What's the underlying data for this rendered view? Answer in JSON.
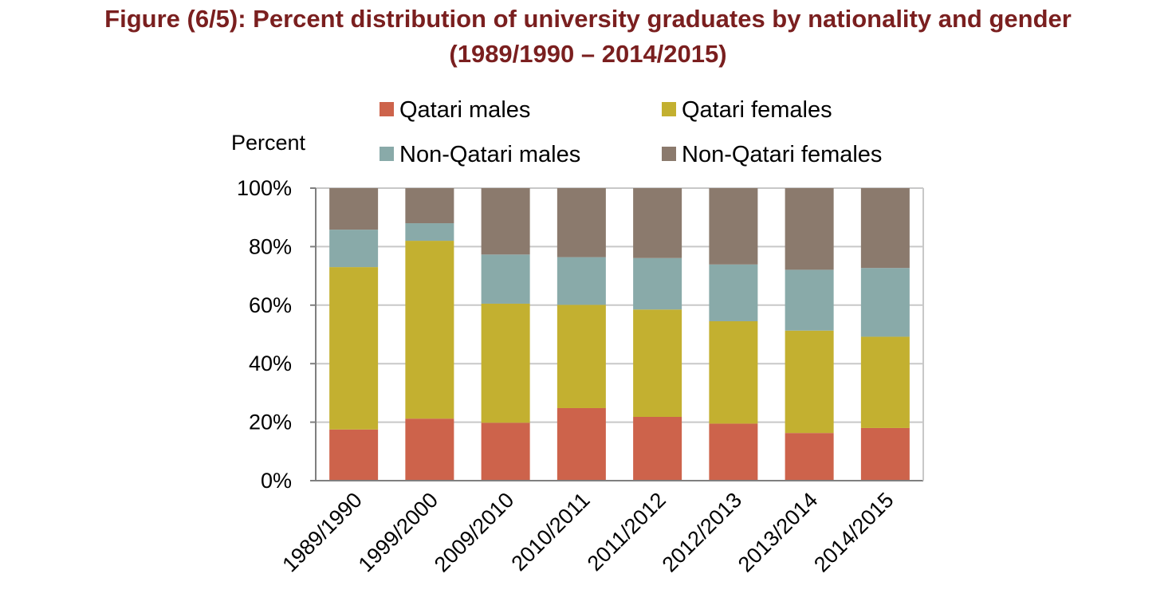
{
  "figure": {
    "title_line1": "Figure (6/5): Percent distribution of university graduates by nationality and gender",
    "title_line2": "(1989/1990 – 2014/2015)",
    "title_color": "#7a1f1f"
  },
  "chart_data": {
    "type": "bar",
    "stacked": true,
    "percent": true,
    "ylabel": "Percent",
    "xlabel": "",
    "ylim": [
      0,
      100
    ],
    "yticks": [
      "0%",
      "20%",
      "40%",
      "60%",
      "80%",
      "100%"
    ],
    "grid": true,
    "legend_position": "top",
    "categories": [
      "1989/1990",
      "1999/2000",
      "2009/2010",
      "2010/2011",
      "2011/2012",
      "2012/2013",
      "2013/2014",
      "2014/2015"
    ],
    "series": [
      {
        "name": "Qatari males",
        "color": "#cd634b",
        "values": [
          17.5,
          21.2,
          19.8,
          24.8,
          21.8,
          19.5,
          16.3,
          18.0
        ]
      },
      {
        "name": "Qatari females",
        "color": "#c3b030",
        "values": [
          55.5,
          60.8,
          40.7,
          35.3,
          36.7,
          35.0,
          35.0,
          31.2
        ]
      },
      {
        "name": "Non-Qatari males",
        "color": "#89aaa9",
        "values": [
          12.8,
          6.0,
          16.8,
          16.3,
          17.6,
          19.4,
          20.8,
          23.5
        ]
      },
      {
        "name": "Non-Qatari females",
        "color": "#8b7a6d",
        "values": [
          14.2,
          12.0,
          22.7,
          23.6,
          23.9,
          26.1,
          27.9,
          27.3
        ]
      }
    ]
  }
}
